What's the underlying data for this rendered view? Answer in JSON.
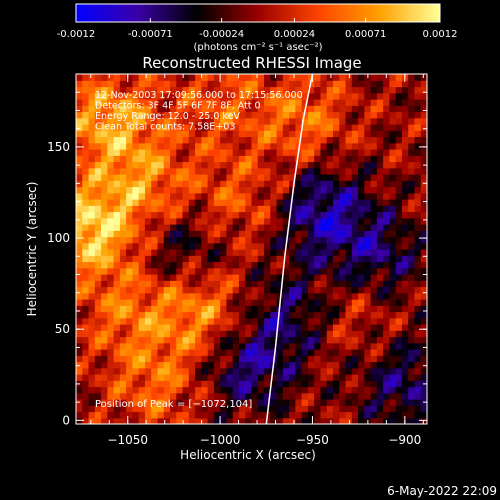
{
  "colorbar": {
    "tick_labels": [
      "-0.0012",
      "-0.00071",
      "-0.00024",
      "0.00024",
      "0.00071",
      "0.0012"
    ],
    "tick_values": [
      -0.0012,
      -0.00071,
      -0.00024,
      0.00024,
      0.00071,
      0.0012
    ],
    "range": [
      -0.0012,
      0.0012
    ],
    "unit_label": "(photons cm⁻² s⁻¹ asec⁻²)",
    "stops": [
      "#0000ff",
      "#3a00aa",
      "#000000",
      "#9a0000",
      "#ff4400",
      "#ffa000",
      "#ffff99"
    ]
  },
  "chart_data": {
    "type": "heatmap",
    "title": "Reconstructed RHESSI Image",
    "xlabel": "Heliocentric X (arcsec)",
    "ylabel": "Heliocentric Y (arcsec)",
    "xlim": [
      -1078,
      -888
    ],
    "ylim": [
      -2,
      190
    ],
    "x_ticks": [
      -1050,
      -1000,
      -950,
      -900
    ],
    "x_tick_labels": [
      "−1050",
      "−1000",
      "−950",
      "−900"
    ],
    "y_ticks": [
      0,
      50,
      100,
      150
    ],
    "y_tick_labels": [
      "0",
      "50",
      "100",
      "150"
    ],
    "info_lines": [
      "12-Nov-2003 17:09:56.000 to 17:15:56.000",
      "Detectors: 3F 4F 5F 6F 7F 8F, Att 0",
      "Energy Range: 12.0 - 25.0 keV",
      "Clean    Total counts: 7.58E+03"
    ],
    "peak_label": "Position of Peak = [−1072,104]",
    "peak": [
      -1072,
      104
    ],
    "limb_curve": [
      [
        -975,
        -2
      ],
      [
        -970,
        40
      ],
      [
        -965,
        90
      ],
      [
        -960,
        130
      ],
      [
        -955,
        165
      ],
      [
        -950,
        190
      ]
    ],
    "hot_spots": [
      {
        "x": -1070,
        "y": 105,
        "v": 1.0
      },
      {
        "x": -1060,
        "y": 165,
        "v": 0.8
      },
      {
        "x": -1040,
        "y": 130,
        "v": 0.6
      },
      {
        "x": -1010,
        "y": 60,
        "v": 0.7
      },
      {
        "x": -1035,
        "y": 20,
        "v": 0.5
      },
      {
        "x": -955,
        "y": 165,
        "v": 0.55
      },
      {
        "x": -990,
        "y": 120,
        "v": 0.45
      },
      {
        "x": -1050,
        "y": 60,
        "v": 0.5
      },
      {
        "x": -930,
        "y": 60,
        "v": 0.35
      },
      {
        "x": -1000,
        "y": 175,
        "v": 0.4
      }
    ],
    "cold_spots": [
      {
        "x": -945,
        "y": 115,
        "v": -0.8
      },
      {
        "x": -915,
        "y": 90,
        "v": -0.6
      },
      {
        "x": -985,
        "y": 30,
        "v": -0.7
      },
      {
        "x": -900,
        "y": 20,
        "v": -0.6
      },
      {
        "x": -1020,
        "y": 95,
        "v": -0.5
      },
      {
        "x": -960,
        "y": 60,
        "v": -0.55
      }
    ]
  },
  "footer_timestamp": "6-May-2022 22:09"
}
